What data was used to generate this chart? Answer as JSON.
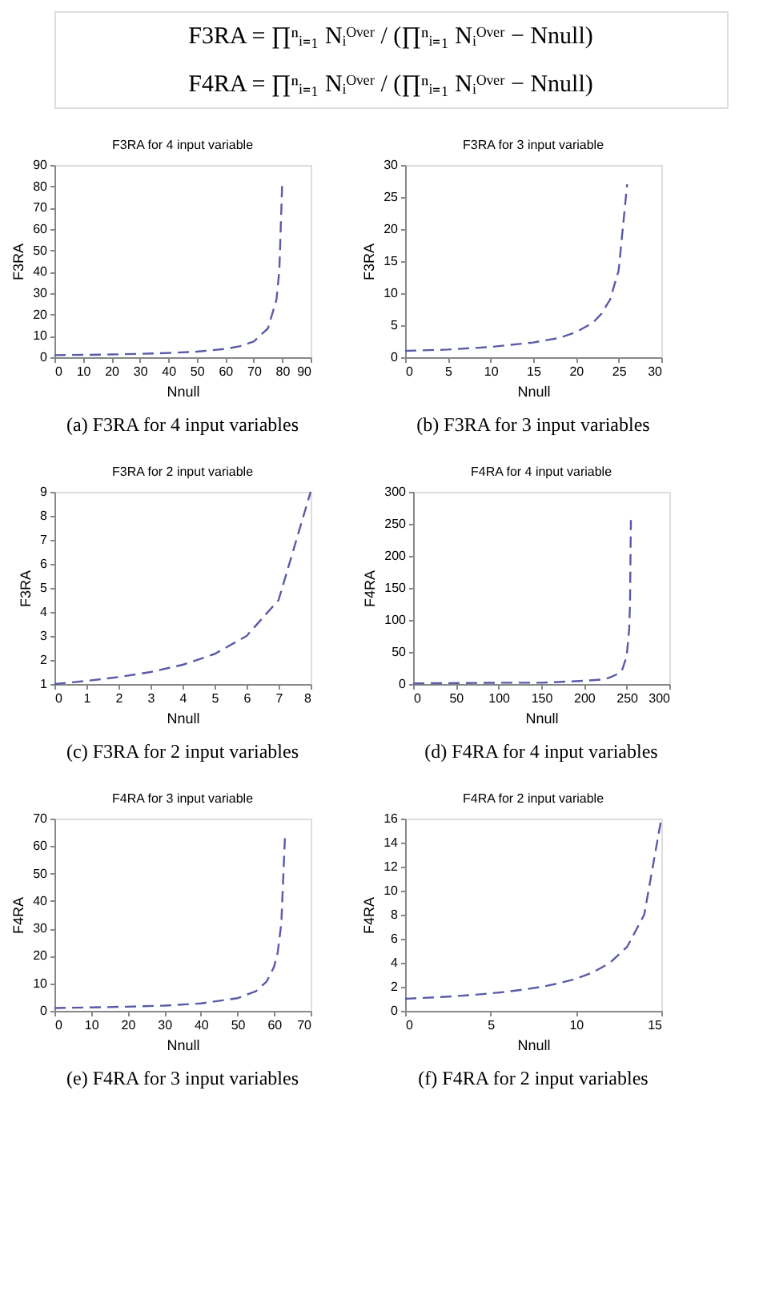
{
  "chart_data": [
    {
      "type": "other",
      "annotations": [
        "F3RA = ∏ⁿᵢ₌₁ Nᵢᴼᵛᵉʳ / (∏ⁿᵢ₌₁ Nᵢᴼᵛᵉʳ − Nnull)",
        "F4RA = ∏ⁿᵢ₌₁ Nᵢᴼᵛᵉʳ / (∏ⁿᵢ₌₁ Nᵢᴼᵛᵉʳ − Nnull)"
      ]
    },
    {
      "type": "line",
      "title": "F3RA for 4 input variable",
      "xlabel": "Nnull",
      "ylabel": "F3RA",
      "annotations": [
        "(a) F3RA for 4 input variables"
      ],
      "line_style": "dashed",
      "grid": false,
      "x": [
        0,
        10,
        20,
        30,
        40,
        50,
        60,
        65,
        70,
        75,
        78,
        79,
        80
      ],
      "series": [
        {
          "color": "#5a5aa8",
          "values": [
            1.0,
            1.1,
            1.3,
            1.6,
            2.0,
            2.6,
            3.9,
            5.1,
            7.4,
            13.5,
            27,
            40.5,
            81
          ]
        }
      ],
      "xlim": [
        0,
        90
      ],
      "xticks": [
        0,
        10,
        20,
        30,
        40,
        50,
        60,
        70,
        80,
        90
      ],
      "ylim": [
        0,
        90
      ],
      "yticks": [
        0,
        10,
        20,
        30,
        40,
        50,
        60,
        70,
        80,
        90
      ]
    },
    {
      "type": "line",
      "title": "F3RA for 3 input variable",
      "xlabel": "Nnull",
      "ylabel": "F3RA",
      "annotations": [
        "(b) F3RA for 3 input variables"
      ],
      "line_style": "dashed",
      "grid": false,
      "x": [
        0,
        5,
        10,
        15,
        18,
        20,
        22,
        23,
        24,
        25,
        26
      ],
      "series": [
        {
          "color": "#5a5aa8",
          "values": [
            1.0,
            1.2,
            1.6,
            2.3,
            3.0,
            3.9,
            5.4,
            6.8,
            9.0,
            13.5,
            27
          ]
        }
      ],
      "xlim": [
        0,
        30
      ],
      "xticks": [
        0,
        5,
        10,
        15,
        20,
        25,
        30
      ],
      "ylim": [
        0,
        30
      ],
      "yticks": [
        0,
        5,
        10,
        15,
        20,
        25,
        30
      ]
    },
    {
      "type": "line",
      "title": "F3RA for 2 input variable",
      "xlabel": "Nnull",
      "ylabel": "F3RA",
      "annotations": [
        "(c) F3RA for 2 input variables"
      ],
      "line_style": "dashed",
      "grid": false,
      "x": [
        0,
        1,
        2,
        3,
        4,
        5,
        6,
        7,
        8
      ],
      "series": [
        {
          "color": "#5a5aa8",
          "values": [
            1.0,
            1.13,
            1.29,
            1.5,
            1.8,
            2.25,
            3.0,
            4.5,
            9.0
          ]
        }
      ],
      "xlim": [
        0,
        8
      ],
      "xticks": [
        0,
        1,
        2,
        3,
        4,
        5,
        6,
        7,
        8
      ],
      "ylim": [
        1,
        9
      ],
      "yticks": [
        1,
        2,
        3,
        4,
        5,
        6,
        7,
        8,
        9
      ]
    },
    {
      "type": "line",
      "title": "F4RA for 4 input variable",
      "xlabel": "Nnull",
      "ylabel": "F4RA",
      "annotations": [
        "(d) F4RA for 4 input variables"
      ],
      "line_style": "dashed",
      "grid": false,
      "x": [
        0,
        100,
        150,
        200,
        220,
        230,
        240,
        245,
        250,
        253,
        254,
        255
      ],
      "series": [
        {
          "color": "#5a5aa8",
          "values": [
            1,
            2,
            2,
            5,
            7,
            10,
            16,
            23,
            43,
            85,
            128,
            256
          ]
        }
      ],
      "xlim": [
        0,
        300
      ],
      "xticks": [
        0,
        50,
        100,
        150,
        200,
        250,
        300
      ],
      "ylim": [
        0,
        300
      ],
      "yticks": [
        0,
        50,
        100,
        150,
        200,
        250,
        300
      ]
    },
    {
      "type": "line",
      "title": "F4RA for 3 input variable",
      "xlabel": "Nnull",
      "ylabel": "F4RA",
      "annotations": [
        "(e) F4RA for 3 input variables"
      ],
      "line_style": "dashed",
      "grid": false,
      "x": [
        0,
        20,
        30,
        40,
        50,
        55,
        58,
        60,
        61,
        62,
        63
      ],
      "series": [
        {
          "color": "#5a5aa8",
          "values": [
            1.0,
            1.5,
            1.9,
            2.7,
            4.6,
            7.1,
            10.7,
            16,
            21.3,
            32,
            64
          ]
        }
      ],
      "xlim": [
        0,
        70
      ],
      "xticks": [
        0,
        10,
        20,
        30,
        40,
        50,
        60,
        70
      ],
      "ylim": [
        0,
        70
      ],
      "yticks": [
        0,
        10,
        20,
        30,
        40,
        50,
        60,
        70
      ]
    },
    {
      "type": "line",
      "title": "F4RA for 2 input variable",
      "xlabel": "Nnull",
      "ylabel": "F4RA",
      "annotations": [
        "(f) F4RA for 2 input variables"
      ],
      "line_style": "dashed",
      "grid": false,
      "x": [
        0,
        1,
        2,
        3,
        4,
        5,
        6,
        7,
        8,
        9,
        10,
        11,
        12,
        13,
        14,
        15
      ],
      "series": [
        {
          "color": "#5a5aa8",
          "values": [
            1.0,
            1.07,
            1.14,
            1.23,
            1.33,
            1.45,
            1.6,
            1.78,
            2.0,
            2.29,
            2.67,
            3.2,
            4.0,
            5.33,
            8.0,
            16
          ]
        }
      ],
      "xlim": [
        0,
        15
      ],
      "xticks": [
        0,
        5,
        10,
        15
      ],
      "ylim": [
        0,
        16
      ],
      "yticks": [
        0,
        2,
        4,
        6,
        8,
        10,
        12,
        14,
        16
      ]
    }
  ]
}
